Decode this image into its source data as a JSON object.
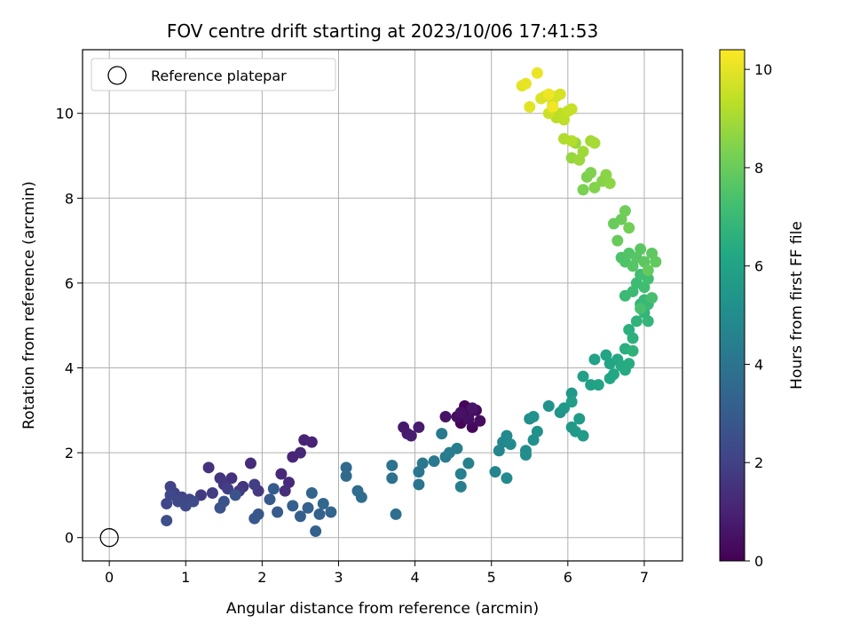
{
  "chart_data": {
    "type": "scatter",
    "title": "FOV centre drift starting at 2023/10/06 17:41:53",
    "xlabel": "Angular distance from reference (arcmin)",
    "ylabel": "Rotation from reference (arcmin)",
    "xlim": [
      -0.35,
      7.5
    ],
    "ylim": [
      -0.55,
      11.5
    ],
    "xticks": [
      0,
      1,
      2,
      3,
      4,
      5,
      6,
      7
    ],
    "yticks": [
      0,
      2,
      4,
      6,
      8,
      10
    ],
    "grid": true,
    "legend": {
      "position": "top-left",
      "entries": [
        "Reference platepar"
      ]
    },
    "reference": {
      "x": 0,
      "y": 0
    },
    "colorbar": {
      "label": "Hours from first FF file",
      "colormap": "viridis",
      "range": [
        0,
        10.4
      ],
      "ticks": [
        0,
        2,
        4,
        6,
        8,
        10
      ]
    },
    "points": [
      [
        4.6,
        2.7,
        0.1
      ],
      [
        4.65,
        3.1,
        0.15
      ],
      [
        4.7,
        2.9,
        0.2
      ],
      [
        4.75,
        2.6,
        0.25
      ],
      [
        4.8,
        3.0,
        0.3
      ],
      [
        4.55,
        2.85,
        0.35
      ],
      [
        4.85,
        2.75,
        0.4
      ],
      [
        4.7,
        2.8,
        0.45
      ],
      [
        4.6,
        2.95,
        0.5
      ],
      [
        4.4,
        2.85,
        0.55
      ],
      [
        4.75,
        3.05,
        0.6
      ],
      [
        3.85,
        2.6,
        0.7
      ],
      [
        3.9,
        2.45,
        0.75
      ],
      [
        4.05,
        2.6,
        0.8
      ],
      [
        3.95,
        2.4,
        0.85
      ],
      [
        2.55,
        2.3,
        1.0
      ],
      [
        2.65,
        2.25,
        1.05
      ],
      [
        2.4,
        1.9,
        1.1
      ],
      [
        2.5,
        2.0,
        1.15
      ],
      [
        2.25,
        1.5,
        1.2
      ],
      [
        2.35,
        1.3,
        1.25
      ],
      [
        1.85,
        1.75,
        1.3
      ],
      [
        2.3,
        1.1,
        1.35
      ],
      [
        1.3,
        1.65,
        1.45
      ],
      [
        1.6,
        1.4,
        1.5
      ],
      [
        1.75,
        1.2,
        1.55
      ],
      [
        1.45,
        1.4,
        1.6
      ],
      [
        1.5,
        1.25,
        1.65
      ],
      [
        1.95,
        1.1,
        1.7
      ],
      [
        1.7,
        1.1,
        1.75
      ],
      [
        1.2,
        1.0,
        1.8
      ],
      [
        1.35,
        1.05,
        1.85
      ],
      [
        1.55,
        1.15,
        1.9
      ],
      [
        1.9,
        1.25,
        1.95
      ],
      [
        0.8,
        1.2,
        2.0
      ],
      [
        0.85,
        1.05,
        2.05
      ],
      [
        0.95,
        0.95,
        2.1
      ],
      [
        1.05,
        0.9,
        2.15
      ],
      [
        0.75,
        0.8,
        2.2
      ],
      [
        0.8,
        1.0,
        2.25
      ],
      [
        0.9,
        0.85,
        2.3
      ],
      [
        1.0,
        0.75,
        2.35
      ],
      [
        1.1,
        0.85,
        2.4
      ],
      [
        0.75,
        0.4,
        2.45
      ],
      [
        1.45,
        0.7,
        2.6
      ],
      [
        1.5,
        0.85,
        2.65
      ],
      [
        1.65,
        1.0,
        2.7
      ],
      [
        1.9,
        0.45,
        2.8
      ],
      [
        1.95,
        0.55,
        2.85
      ],
      [
        2.1,
        0.9,
        2.9
      ],
      [
        2.2,
        0.6,
        2.95
      ],
      [
        2.15,
        1.15,
        3.0
      ],
      [
        2.5,
        0.5,
        3.1
      ],
      [
        2.4,
        0.75,
        3.15
      ],
      [
        2.6,
        0.7,
        3.2
      ],
      [
        2.75,
        0.55,
        3.25
      ],
      [
        2.7,
        0.15,
        3.3
      ],
      [
        2.65,
        1.05,
        3.35
      ],
      [
        2.9,
        0.6,
        3.4
      ],
      [
        2.8,
        0.8,
        3.45
      ],
      [
        3.1,
        1.65,
        3.55
      ],
      [
        3.1,
        1.45,
        3.6
      ],
      [
        3.25,
        1.1,
        3.65
      ],
      [
        3.3,
        0.95,
        3.7
      ],
      [
        3.75,
        0.55,
        3.8
      ],
      [
        3.7,
        1.4,
        3.85
      ],
      [
        3.7,
        1.7,
        3.9
      ],
      [
        4.05,
        1.25,
        4.0
      ],
      [
        4.05,
        1.55,
        4.05
      ],
      [
        4.1,
        1.75,
        4.1
      ],
      [
        4.25,
        1.8,
        4.2
      ],
      [
        4.35,
        2.45,
        4.25
      ],
      [
        4.4,
        1.9,
        4.3
      ],
      [
        4.45,
        2.0,
        4.35
      ],
      [
        4.55,
        2.1,
        4.4
      ],
      [
        4.6,
        1.2,
        4.45
      ],
      [
        4.6,
        1.5,
        4.5
      ],
      [
        4.7,
        1.75,
        4.55
      ],
      [
        5.05,
        1.55,
        4.7
      ],
      [
        5.1,
        2.05,
        4.75
      ],
      [
        5.15,
        2.25,
        4.8
      ],
      [
        5.2,
        2.4,
        4.85
      ],
      [
        5.2,
        1.4,
        4.9
      ],
      [
        5.25,
        2.2,
        4.95
      ],
      [
        5.45,
        1.95,
        5.0
      ],
      [
        5.45,
        2.05,
        5.05
      ],
      [
        5.5,
        2.8,
        5.1
      ],
      [
        5.55,
        2.3,
        5.15
      ],
      [
        5.6,
        2.5,
        5.2
      ],
      [
        5.55,
        2.85,
        5.25
      ],
      [
        5.75,
        3.1,
        5.3
      ],
      [
        5.9,
        2.95,
        5.4
      ],
      [
        5.95,
        3.05,
        5.45
      ],
      [
        6.05,
        3.4,
        5.5
      ],
      [
        6.05,
        2.6,
        5.55
      ],
      [
        6.1,
        2.5,
        5.6
      ],
      [
        6.15,
        2.8,
        5.65
      ],
      [
        6.2,
        2.4,
        5.7
      ],
      [
        6.05,
        3.2,
        5.75
      ],
      [
        6.2,
        3.8,
        5.85
      ],
      [
        6.3,
        3.6,
        5.9
      ],
      [
        6.35,
        4.2,
        5.95
      ],
      [
        6.4,
        3.6,
        6.0
      ],
      [
        6.5,
        4.3,
        6.05
      ],
      [
        6.55,
        4.1,
        6.1
      ],
      [
        6.55,
        3.75,
        6.15
      ],
      [
        6.6,
        3.85,
        6.2
      ],
      [
        6.65,
        4.2,
        6.25
      ],
      [
        6.7,
        4.05,
        6.3
      ],
      [
        6.75,
        3.95,
        6.35
      ],
      [
        6.8,
        4.1,
        6.4
      ],
      [
        6.75,
        4.45,
        6.5
      ],
      [
        6.8,
        4.9,
        6.55
      ],
      [
        6.85,
        4.7,
        6.6
      ],
      [
        6.85,
        4.4,
        6.65
      ],
      [
        6.9,
        5.1,
        6.7
      ],
      [
        6.95,
        5.5,
        6.75
      ],
      [
        7.0,
        5.3,
        6.8
      ],
      [
        7.05,
        5.1,
        6.85
      ],
      [
        7.0,
        5.6,
        6.9
      ],
      [
        7.05,
        5.5,
        6.95
      ],
      [
        6.75,
        5.7,
        7.0
      ],
      [
        6.85,
        5.8,
        7.05
      ],
      [
        6.9,
        6.0,
        7.1
      ],
      [
        6.95,
        6.2,
        7.15
      ],
      [
        7.0,
        5.9,
        7.2
      ],
      [
        7.05,
        6.1,
        7.25
      ],
      [
        7.1,
        5.65,
        7.3
      ],
      [
        6.95,
        5.4,
        7.35
      ],
      [
        6.7,
        6.6,
        7.45
      ],
      [
        6.75,
        6.5,
        7.5
      ],
      [
        6.8,
        6.7,
        7.55
      ],
      [
        6.85,
        6.4,
        7.6
      ],
      [
        6.9,
        6.6,
        7.65
      ],
      [
        6.95,
        6.8,
        7.7
      ],
      [
        7.0,
        6.5,
        7.75
      ],
      [
        7.1,
        6.7,
        7.8
      ],
      [
        7.15,
        6.5,
        7.85
      ],
      [
        7.05,
        6.3,
        7.9
      ],
      [
        6.65,
        7.0,
        7.95
      ],
      [
        6.6,
        7.4,
        8.0
      ],
      [
        6.7,
        7.5,
        8.05
      ],
      [
        6.75,
        7.7,
        8.1
      ],
      [
        6.8,
        7.3,
        8.15
      ],
      [
        6.2,
        8.2,
        8.3
      ],
      [
        6.25,
        8.5,
        8.35
      ],
      [
        6.3,
        8.6,
        8.4
      ],
      [
        6.35,
        8.25,
        8.45
      ],
      [
        6.45,
        8.4,
        8.5
      ],
      [
        6.5,
        8.55,
        8.55
      ],
      [
        6.55,
        8.35,
        8.6
      ],
      [
        6.05,
        8.95,
        8.75
      ],
      [
        6.1,
        9.3,
        8.8
      ],
      [
        6.15,
        8.9,
        8.85
      ],
      [
        6.2,
        9.1,
        8.9
      ],
      [
        6.3,
        9.35,
        8.95
      ],
      [
        6.35,
        9.3,
        9.0
      ],
      [
        5.95,
        9.4,
        9.15
      ],
      [
        6.05,
        9.35,
        9.2
      ],
      [
        5.85,
        9.9,
        9.3
      ],
      [
        5.9,
        10.0,
        9.35
      ],
      [
        5.95,
        9.85,
        9.4
      ],
      [
        6.0,
        10.05,
        9.45
      ],
      [
        6.05,
        10.1,
        9.5
      ],
      [
        5.75,
        10.0,
        9.6
      ],
      [
        5.8,
        10.2,
        9.65
      ],
      [
        5.85,
        10.4,
        9.7
      ],
      [
        5.9,
        10.45,
        9.75
      ],
      [
        5.7,
        10.4,
        9.8
      ],
      [
        5.65,
        10.35,
        9.85
      ],
      [
        5.5,
        10.15,
        9.95
      ],
      [
        5.4,
        10.65,
        10.0
      ],
      [
        5.45,
        10.7,
        10.05
      ],
      [
        5.6,
        10.95,
        10.1
      ],
      [
        5.75,
        10.45,
        10.15
      ],
      [
        5.8,
        10.15,
        10.2
      ]
    ]
  }
}
